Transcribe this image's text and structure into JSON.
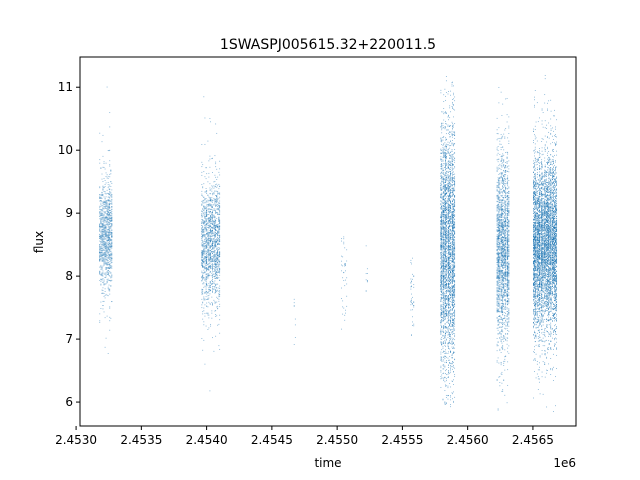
{
  "chart_data": {
    "type": "scatter",
    "title": "1SWASPJ005615.32+220011.5",
    "xlabel": "time",
    "ylabel": "flux",
    "x_offset_label": "1e6",
    "xlim": [
      2.45303,
      2.45683
    ],
    "ylim": [
      5.62,
      11.48
    ],
    "x_ticks": [
      2.453,
      2.4535,
      2.454,
      2.4545,
      2.455,
      2.4555,
      2.456,
      2.4565
    ],
    "x_tick_labels": [
      "2.4530",
      "2.4535",
      "2.4540",
      "2.4545",
      "2.4550",
      "2.4555",
      "2.4560",
      "2.4565"
    ],
    "y_ticks": [
      6,
      7,
      8,
      9,
      10,
      11
    ],
    "y_tick_labels": [
      "6",
      "7",
      "8",
      "9",
      "10",
      "11"
    ],
    "grid": false,
    "point_color": "#1f77b4",
    "clusters": [
      {
        "x_start": 2.45318,
        "x_end": 2.45327,
        "y_center": 8.65,
        "y_spread": 0.45,
        "y_min": 6.4,
        "y_max": 11.15,
        "density": 0.9
      },
      {
        "x_start": 2.45396,
        "x_end": 2.4541,
        "y_center": 8.55,
        "y_spread": 0.5,
        "y_min": 6.1,
        "y_max": 11.15,
        "density": 0.9
      },
      {
        "x_start": 2.45467,
        "x_end": 2.45468,
        "y_center": 7.4,
        "y_spread": 0.25,
        "y_min": 6.85,
        "y_max": 7.75,
        "density": 0.05
      },
      {
        "x_start": 2.45503,
        "x_end": 2.45507,
        "y_center": 8.0,
        "y_spread": 0.45,
        "y_min": 7.1,
        "y_max": 8.65,
        "density": 0.1
      },
      {
        "x_start": 2.45522,
        "x_end": 2.45523,
        "y_center": 8.0,
        "y_spread": 0.25,
        "y_min": 7.4,
        "y_max": 8.6,
        "density": 0.06
      },
      {
        "x_start": 2.45556,
        "x_end": 2.45558,
        "y_center": 7.7,
        "y_spread": 0.4,
        "y_min": 6.9,
        "y_max": 8.75,
        "density": 0.12
      },
      {
        "x_start": 2.45579,
        "x_end": 2.4559,
        "y_center": 8.45,
        "y_spread": 0.95,
        "y_min": 5.9,
        "y_max": 11.2,
        "density": 2.4
      },
      {
        "x_start": 2.45622,
        "x_end": 2.45631,
        "y_center": 8.45,
        "y_spread": 0.75,
        "y_min": 5.85,
        "y_max": 11.15,
        "density": 1.7
      },
      {
        "x_start": 2.4565,
        "x_end": 2.45668,
        "y_center": 8.5,
        "y_spread": 0.7,
        "y_min": 5.85,
        "y_max": 11.2,
        "density": 2.4
      }
    ]
  }
}
